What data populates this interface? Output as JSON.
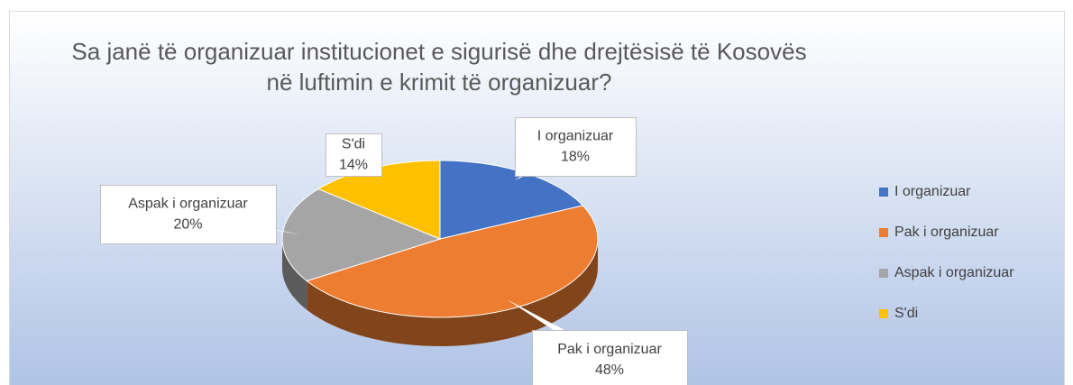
{
  "chart_data": {
    "type": "pie3d",
    "title": "Sa janë të organizuar institucionet e sigurisë dhe drejtësisë të Kosovës në luftimin e krimit të organizuar?",
    "categories": [
      "I organizuar",
      "Pak i organizuar",
      "Aspak i organizuar",
      "S'di"
    ],
    "values": [
      18,
      48,
      20,
      14
    ],
    "value_labels": [
      "18%",
      "48%",
      "20%",
      "14%"
    ],
    "colors": [
      "#4472c4",
      "#ed7d31",
      "#a5a5a5",
      "#ffc000"
    ],
    "legend": "right"
  }
}
